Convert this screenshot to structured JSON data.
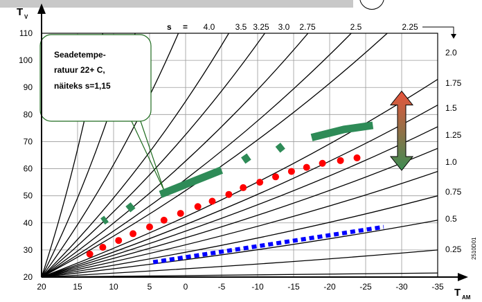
{
  "chart_data": {
    "type": "line",
    "ylabel": "T",
    "ylabel_sub": "V",
    "xlabel": "T",
    "xlabel_sub": "AM",
    "x_reversed": true,
    "xlim": [
      20,
      -35
    ],
    "ylim": [
      20,
      110
    ],
    "x_ticks": [
      "20",
      "15",
      "10",
      "5",
      "0",
      "-5",
      "-10",
      "-15",
      "-20",
      "-25",
      "-30",
      "-35"
    ],
    "y_ticks": [
      "20",
      "30",
      "40",
      "50",
      "60",
      "70",
      "80",
      "90",
      "100",
      "110"
    ],
    "grid": true,
    "s_label": "s",
    "s_equals": "=",
    "top_s_labels": [
      "4.0",
      "3.5",
      "3.25",
      "3.0",
      "2.75",
      "2.5",
      "2.25"
    ],
    "right_s_labels": [
      "2.0",
      "1.75",
      "1.5",
      "1.25",
      "1.0",
      "0.75",
      "0.5",
      "0.25"
    ],
    "heating_curves": {
      "origin": [
        20,
        20
      ],
      "s_values": [
        4.0,
        3.5,
        3.25,
        3.0,
        2.75,
        2.5,
        2.25,
        2.0,
        1.75,
        1.5,
        1.25,
        1.0,
        0.75,
        0.5,
        0.25
      ],
      "endpoints_at_x_minus35": [
        21.5,
        30,
        41,
        50,
        59,
        67.5,
        75.5,
        83.5,
        93
      ],
      "endpoints_at_y_110": [
        1,
        -6,
        -11,
        -17,
        -23,
        -28
      ]
    },
    "callout": {
      "lines": [
        "Seadetempe-",
        "ratuur 22+ C,",
        "näiteks s=1,15"
      ],
      "pointer": [
        3,
        50
      ]
    },
    "series": [
      {
        "style": "dots",
        "color": "#ff0000",
        "x": [
          13.3,
          11.5,
          9.3,
          7.3,
          5,
          3,
          0.7,
          -1.7,
          -3.7,
          -6,
          -8,
          -10.3,
          -12.5,
          -14.7,
          -16.8,
          -19,
          -21.5,
          -23.8
        ],
        "y": [
          28.5,
          31,
          33.5,
          36,
          38.5,
          41,
          43.5,
          46,
          48,
          50.5,
          53,
          55,
          57,
          59,
          60.5,
          62,
          63,
          64
        ]
      },
      {
        "style": "thick-segments",
        "color": "#2e8b57",
        "segments": [
          [
            [
              11.5,
              40.5
            ],
            [
              11,
              41.5
            ]
          ],
          [
            [
              8,
              45
            ],
            [
              7.3,
              46.5
            ]
          ],
          [
            [
              3.5,
              50.5
            ],
            [
              -5,
              59.5
            ]
          ],
          [
            [
              -8,
              63
            ],
            [
              -8.8,
              64.5
            ]
          ],
          [
            [
              -12.8,
              67
            ],
            [
              -13.5,
              68.5
            ]
          ],
          [
            [
              -17.5,
              71.5
            ],
            [
              -22,
              74.5
            ],
            [
              -26,
              76
            ]
          ]
        ]
      },
      {
        "style": "dashed",
        "color": "#0000ff",
        "x": [
          4.5,
          -27.5
        ],
        "y": [
          25.5,
          38.5
        ]
      }
    ],
    "legend_arrow": {
      "x": -30,
      "y_top": 83,
      "y_bottom": 65,
      "color_top": "#e8543c",
      "color_bottom": "#3c8c52"
    },
    "figure_code": "2510D01"
  }
}
